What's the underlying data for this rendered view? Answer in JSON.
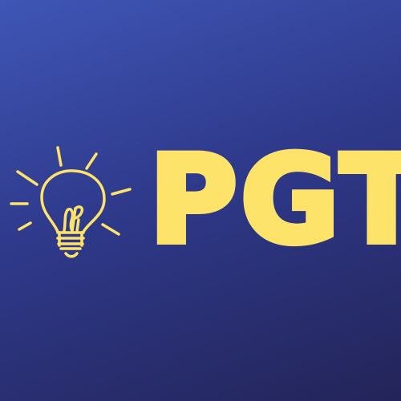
{
  "logo": {
    "text": "PGT",
    "icon": "lightbulb-icon"
  },
  "colors": {
    "background_top": "#3f56b6",
    "background_bottom": "#232458",
    "accent": "#fde36a"
  }
}
